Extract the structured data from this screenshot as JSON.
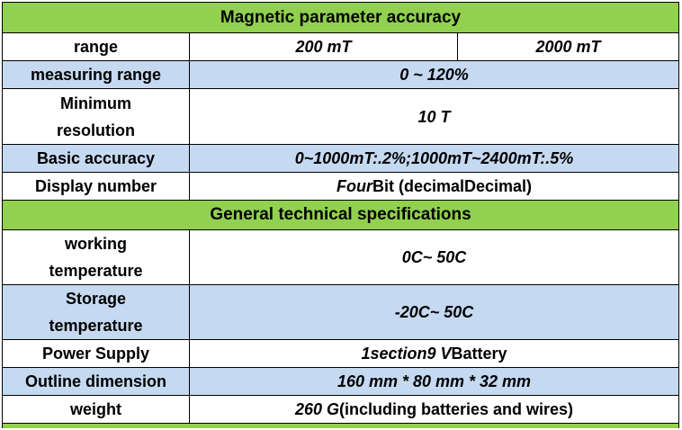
{
  "colors": {
    "header_green": "#92d050",
    "row_blue": "#c5d9f1",
    "row_white": "#ffffff",
    "border": "#000000"
  },
  "section1": {
    "title": "Magnetic parameter accuracy",
    "range": {
      "label": "range",
      "value_a": "200 mT",
      "value_b": "2000 mT"
    },
    "measuring_range": {
      "label": "measuring range",
      "value": "0 ~ 120%"
    },
    "minimum_resolution": {
      "label_line1": "Minimum",
      "label_line2": "resolution",
      "value": "10 T"
    },
    "basic_accuracy": {
      "label": "Basic accuracy",
      "value": "0~1000mT:.2%;1000mT~2400mT:.5%"
    },
    "display_number": {
      "label": "Display number",
      "value_italic": "Four",
      "value_upright": "Bit (decimalDecimal)"
    }
  },
  "section2": {
    "title": "General technical specifications",
    "working_temperature": {
      "label_line1": "working",
      "label_line2": "temperature",
      "value": "0C~ 50C"
    },
    "storage_temperature": {
      "label_line1": "Storage",
      "label_line2": "temperature",
      "value": "-20C~ 50C"
    },
    "power_supply": {
      "label": "Power Supply",
      "value_part1": "1section",
      "value_part2": "9 V",
      "value_part3": "Battery"
    },
    "outline_dimension": {
      "label": "Outline dimension",
      "value": "160 mm * 80 mm * 32 mm"
    },
    "weight": {
      "label": "weight",
      "value_italic": "260 G",
      "value_upright": "(including batteries and wires)"
    }
  }
}
